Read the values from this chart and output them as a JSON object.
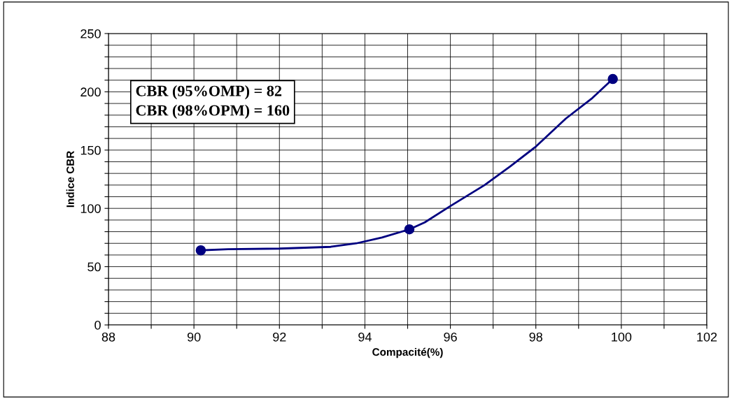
{
  "chart_data": {
    "type": "line",
    "xlabel": "Compacité(%)",
    "ylabel": "Indice CBR",
    "series": [
      {
        "color": "#000080",
        "marker": "none",
        "x": [
          90.16,
          90.8,
          92,
          93.2,
          93.8,
          94.4,
          95.04,
          95.4,
          96,
          96.8,
          97.4,
          98,
          98.7,
          99.3,
          99.8
        ],
        "values": [
          64,
          65,
          65.5,
          67,
          70,
          75,
          82,
          88,
          102,
          120,
          136,
          153,
          177,
          194,
          211
        ]
      },
      {
        "type": "scatter",
        "color": "#000080",
        "marker": "circle",
        "x": [
          90.16,
          95.04,
          99.8
        ],
        "values": [
          64,
          82,
          211
        ]
      }
    ],
    "xlim": [
      88,
      102
    ],
    "ylim": [
      0,
      250
    ],
    "xticks": [
      88,
      {
        "value": 89,
        "label": null
      },
      90,
      {
        "value": 91,
        "label": null
      },
      92,
      {
        "value": 93,
        "label": null
      },
      94,
      {
        "value": 95,
        "label": null
      },
      96,
      {
        "value": 97,
        "label": null
      },
      98,
      {
        "value": 99,
        "label": null
      },
      100,
      {
        "value": 101,
        "label": null
      },
      102
    ],
    "yticks": [
      0,
      {
        "value": 10,
        "label": null
      },
      {
        "value": 20,
        "label": null
      },
      {
        "value": 30,
        "label": null
      },
      {
        "value": 40,
        "label": null
      },
      50,
      {
        "value": 60,
        "label": null
      },
      {
        "value": 70,
        "label": null
      },
      {
        "value": 80,
        "label": null
      },
      {
        "value": 90,
        "label": null
      },
      100,
      {
        "value": 110,
        "label": null
      },
      {
        "value": 120,
        "label": null
      },
      {
        "value": 130,
        "label": null
      },
      {
        "value": 140,
        "label": null
      },
      150,
      {
        "value": 160,
        "label": null
      },
      {
        "value": 170,
        "label": null
      },
      {
        "value": 180,
        "label": null
      },
      {
        "value": 190,
        "label": null
      },
      200,
      {
        "value": 210,
        "label": null
      },
      {
        "value": 220,
        "label": null
      },
      {
        "value": 230,
        "label": null
      },
      {
        "value": 240,
        "label": null
      },
      250
    ],
    "grid": true,
    "line_style": "solid",
    "legend": false,
    "annotations": [
      "CBR (95%OMP) = 82\nCBR (98%OPM) = 160"
    ]
  }
}
